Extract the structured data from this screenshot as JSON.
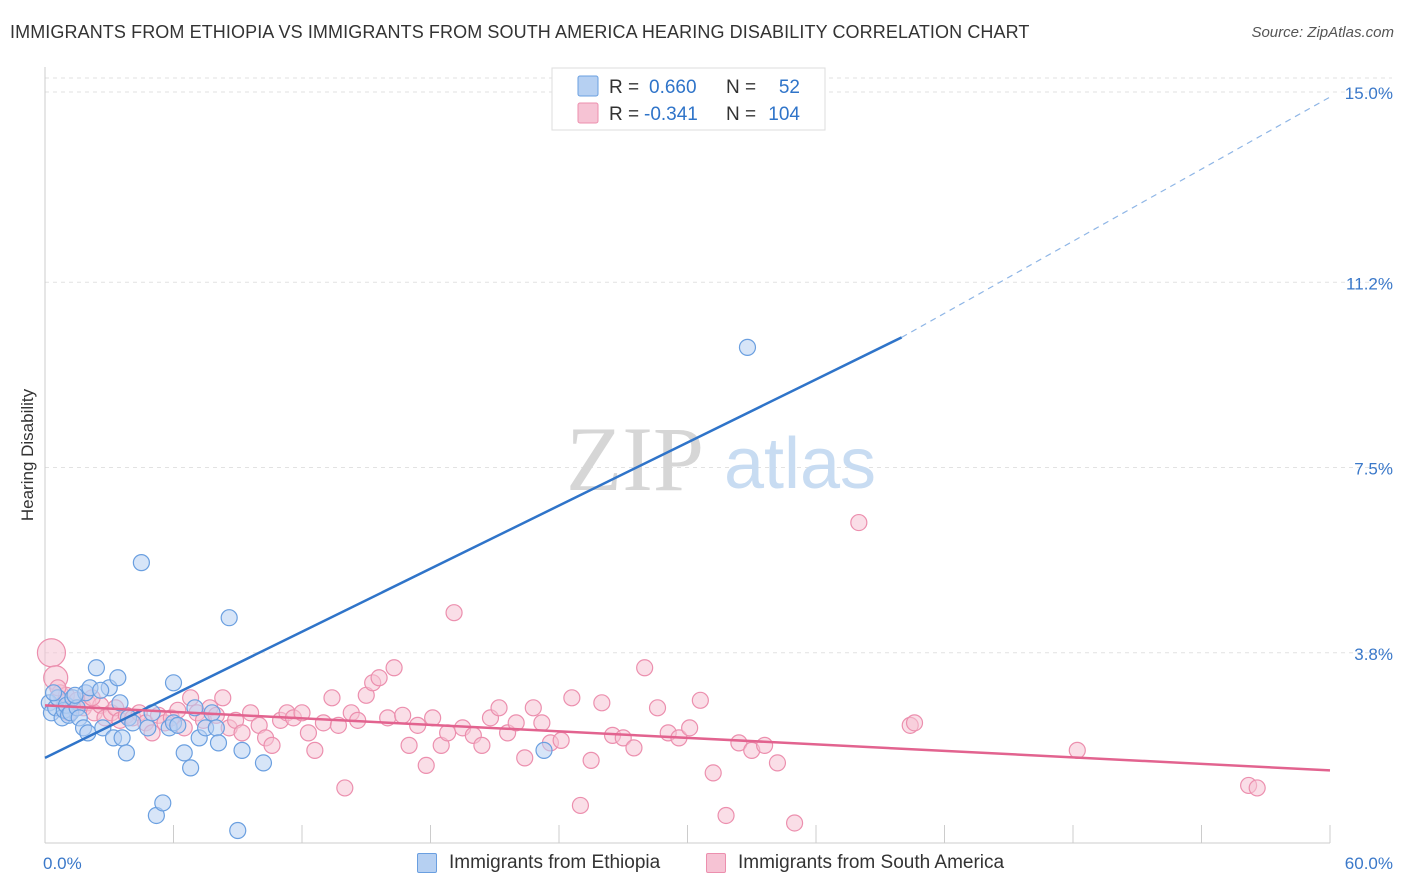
{
  "title": "IMMIGRANTS FROM ETHIOPIA VS IMMIGRANTS FROM SOUTH AMERICA HEARING DISABILITY CORRELATION CHART",
  "source": "Source: ZipAtlas.com",
  "watermark": {
    "zip": "ZIP",
    "atlas": "atlas"
  },
  "chart_data": {
    "type": "scatter",
    "title": "IMMIGRANTS FROM ETHIOPIA VS IMMIGRANTS FROM SOUTH AMERICA HEARING DISABILITY CORRELATION CHART",
    "xlabel": "",
    "ylabel": "Hearing Disability",
    "xlim": [
      0,
      60
    ],
    "ylim": [
      0,
      15.5
    ],
    "x_tick_labels": {
      "min": "0.0%",
      "max": "60.0%"
    },
    "y_ticks": [
      3.8,
      7.5,
      11.2,
      15.0
    ],
    "y_tick_labels": [
      "3.8%",
      "7.5%",
      "11.2%",
      "15.0%"
    ],
    "legend_top": [
      {
        "r_label": "R =",
        "r_value": "0.660",
        "n_label": "N =",
        "n_value": "52"
      },
      {
        "r_label": "R =",
        "r_value": "-0.341",
        "n_label": "N =",
        "n_value": "104"
      }
    ],
    "series": [
      {
        "name": "Immigrants from Ethiopia",
        "color": "#6a9fe0",
        "fill": "#b6d0f2",
        "line_color": "#2f74c9",
        "regression": {
          "x_start": 0,
          "y_start": 1.7,
          "x_solid_end": 40,
          "y_solid_end": 10.1,
          "x_dash_end": 60,
          "y_dash_end": 14.9
        },
        "points": [
          [
            0.2,
            2.8
          ],
          [
            0.3,
            2.6
          ],
          [
            0.5,
            2.7
          ],
          [
            0.6,
            2.9
          ],
          [
            0.8,
            2.5
          ],
          [
            0.9,
            2.65
          ],
          [
            1.0,
            2.75
          ],
          [
            1.1,
            2.55
          ],
          [
            1.2,
            2.6
          ],
          [
            1.3,
            2.9
          ],
          [
            1.5,
            2.7
          ],
          [
            1.6,
            2.5
          ],
          [
            1.8,
            2.3
          ],
          [
            1.9,
            3.0
          ],
          [
            2.0,
            2.2
          ],
          [
            2.1,
            3.1
          ],
          [
            2.4,
            3.5
          ],
          [
            2.7,
            2.3
          ],
          [
            3.0,
            3.1
          ],
          [
            3.2,
            2.1
          ],
          [
            3.4,
            3.3
          ],
          [
            3.5,
            2.8
          ],
          [
            3.6,
            2.1
          ],
          [
            3.8,
            1.8
          ],
          [
            3.9,
            2.5
          ],
          [
            4.1,
            2.4
          ],
          [
            4.5,
            5.6
          ],
          [
            4.8,
            2.3
          ],
          [
            5.0,
            2.6
          ],
          [
            5.2,
            0.55
          ],
          [
            5.5,
            0.8
          ],
          [
            5.8,
            2.3
          ],
          [
            6.0,
            2.4
          ],
          [
            6.2,
            2.35
          ],
          [
            6.0,
            3.2
          ],
          [
            6.5,
            1.8
          ],
          [
            6.8,
            1.5
          ],
          [
            7.0,
            2.7
          ],
          [
            7.2,
            2.1
          ],
          [
            7.5,
            2.3
          ],
          [
            7.8,
            2.6
          ],
          [
            8.0,
            2.3
          ],
          [
            8.1,
            2.0
          ],
          [
            8.6,
            4.5
          ],
          [
            9.0,
            0.25
          ],
          [
            9.2,
            1.85
          ],
          [
            10.2,
            1.6
          ],
          [
            23.3,
            1.85
          ],
          [
            32.8,
            9.9
          ],
          [
            0.4,
            3.0
          ],
          [
            1.4,
            2.95
          ],
          [
            2.6,
            3.05
          ]
        ]
      },
      {
        "name": "Immigrants from South America",
        "color": "#ec8fae",
        "fill": "#f6c3d4",
        "line_color": "#e2638f",
        "regression": {
          "x_start": 0,
          "y_start": 2.75,
          "x_solid_end": 60,
          "y_solid_end": 1.45
        },
        "points": [
          [
            0.3,
            3.8
          ],
          [
            0.5,
            3.3
          ],
          [
            0.7,
            3.0
          ],
          [
            0.9,
            2.8
          ],
          [
            1.0,
            2.95
          ],
          [
            1.3,
            2.7
          ],
          [
            1.5,
            2.85
          ],
          [
            1.8,
            2.7
          ],
          [
            2.0,
            2.8
          ],
          [
            2.3,
            2.6
          ],
          [
            2.6,
            2.75
          ],
          [
            2.8,
            2.5
          ],
          [
            3.1,
            2.6
          ],
          [
            3.3,
            2.7
          ],
          [
            3.5,
            2.45
          ],
          [
            3.8,
            2.55
          ],
          [
            4.1,
            2.5
          ],
          [
            4.4,
            2.6
          ],
          [
            4.7,
            2.4
          ],
          [
            5.0,
            2.2
          ],
          [
            5.3,
            2.55
          ],
          [
            5.6,
            2.4
          ],
          [
            5.9,
            2.5
          ],
          [
            6.2,
            2.65
          ],
          [
            6.5,
            2.3
          ],
          [
            6.8,
            2.9
          ],
          [
            7.1,
            2.6
          ],
          [
            7.4,
            2.45
          ],
          [
            7.7,
            2.7
          ],
          [
            8.0,
            2.55
          ],
          [
            8.3,
            2.9
          ],
          [
            8.6,
            2.3
          ],
          [
            8.9,
            2.45
          ],
          [
            9.2,
            2.2
          ],
          [
            9.6,
            2.6
          ],
          [
            10.0,
            2.35
          ],
          [
            10.3,
            2.1
          ],
          [
            10.6,
            1.95
          ],
          [
            11.0,
            2.45
          ],
          [
            11.3,
            2.6
          ],
          [
            11.6,
            2.5
          ],
          [
            12.0,
            2.6
          ],
          [
            12.3,
            2.2
          ],
          [
            12.6,
            1.85
          ],
          [
            13.0,
            2.4
          ],
          [
            13.4,
            2.9
          ],
          [
            13.7,
            2.35
          ],
          [
            14.0,
            1.1
          ],
          [
            14.3,
            2.6
          ],
          [
            14.6,
            2.45
          ],
          [
            15.0,
            2.95
          ],
          [
            15.3,
            3.2
          ],
          [
            15.6,
            3.3
          ],
          [
            16.0,
            2.5
          ],
          [
            16.3,
            3.5
          ],
          [
            16.7,
            2.55
          ],
          [
            17.0,
            1.95
          ],
          [
            17.4,
            2.35
          ],
          [
            17.8,
            1.55
          ],
          [
            18.1,
            2.5
          ],
          [
            18.5,
            1.95
          ],
          [
            18.8,
            2.2
          ],
          [
            19.1,
            4.6
          ],
          [
            19.5,
            2.3
          ],
          [
            20.0,
            2.15
          ],
          [
            20.4,
            1.95
          ],
          [
            20.8,
            2.5
          ],
          [
            21.2,
            2.7
          ],
          [
            21.6,
            2.2
          ],
          [
            22.0,
            2.4
          ],
          [
            22.4,
            1.7
          ],
          [
            22.8,
            2.7
          ],
          [
            23.2,
            2.4
          ],
          [
            23.6,
            2.0
          ],
          [
            24.1,
            2.05
          ],
          [
            24.6,
            2.9
          ],
          [
            25.0,
            0.75
          ],
          [
            25.5,
            1.65
          ],
          [
            26.0,
            2.8
          ],
          [
            26.5,
            2.15
          ],
          [
            27.0,
            2.1
          ],
          [
            27.5,
            1.9
          ],
          [
            28.0,
            3.5
          ],
          [
            28.6,
            2.7
          ],
          [
            29.1,
            2.2
          ],
          [
            29.6,
            2.1
          ],
          [
            30.1,
            2.3
          ],
          [
            30.6,
            2.85
          ],
          [
            31.2,
            1.4
          ],
          [
            31.8,
            0.55
          ],
          [
            32.4,
            2.0
          ],
          [
            33.0,
            1.85
          ],
          [
            33.6,
            1.95
          ],
          [
            34.2,
            1.6
          ],
          [
            35.0,
            0.4
          ],
          [
            38.0,
            6.4
          ],
          [
            40.4,
            2.35
          ],
          [
            40.6,
            2.4
          ],
          [
            48.2,
            1.85
          ],
          [
            56.2,
            1.15
          ],
          [
            56.6,
            1.1
          ],
          [
            0.6,
            3.1
          ],
          [
            1.1,
            2.6
          ],
          [
            2.2,
            2.9
          ]
        ]
      }
    ]
  }
}
